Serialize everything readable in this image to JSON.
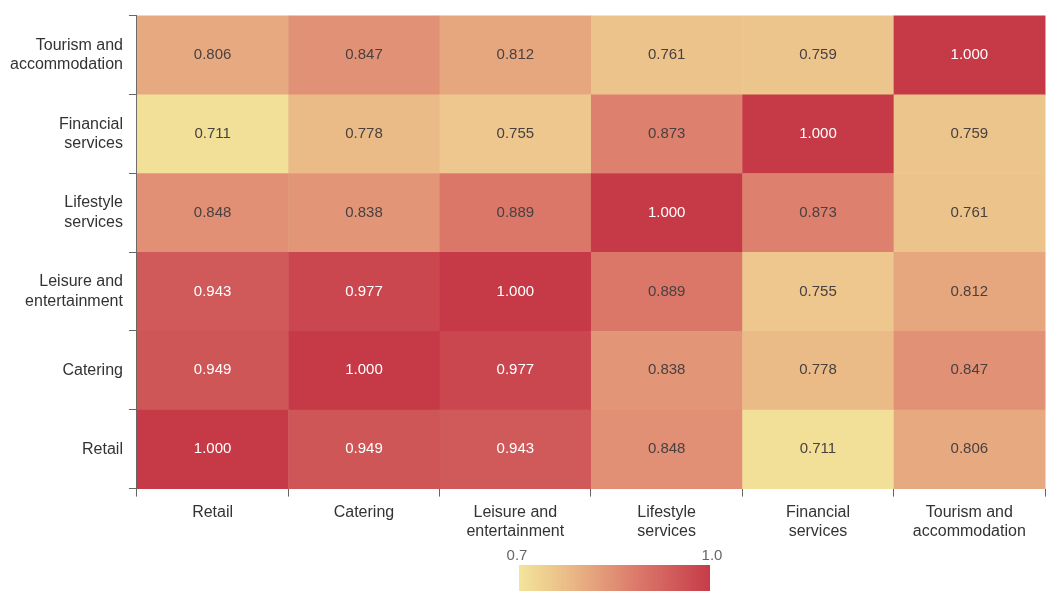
{
  "chart_data": {
    "type": "heatmap",
    "categories": [
      "Retail",
      "Catering",
      "Leisure and entertainment",
      "Lifestyle services",
      "Financial services",
      "Tourism and accommodation"
    ],
    "y_categories": [
      "Tourism and accommodation",
      "Financial services",
      "Lifestyle services",
      "Leisure and entertainment",
      "Catering",
      "Retail"
    ],
    "cells": [
      [
        0.806,
        0.847,
        0.812,
        0.761,
        0.759,
        1.0
      ],
      [
        0.711,
        0.778,
        0.755,
        0.873,
        1.0,
        0.759
      ],
      [
        0.848,
        0.838,
        0.889,
        1.0,
        0.873,
        0.761
      ],
      [
        0.943,
        0.977,
        1.0,
        0.889,
        0.755,
        0.812
      ],
      [
        0.949,
        1.0,
        0.977,
        0.838,
        0.778,
        0.847
      ],
      [
        1.0,
        0.949,
        0.943,
        0.848,
        0.711,
        0.806
      ]
    ],
    "cell_labels": [
      [
        "0.806",
        "0.847",
        "0.812",
        "0.761",
        "0.759",
        "1.000"
      ],
      [
        "0.711",
        "0.778",
        "0.755",
        "0.873",
        "1.000",
        "0.759"
      ],
      [
        "0.848",
        "0.838",
        "0.889",
        "1.000",
        "0.873",
        "0.761"
      ],
      [
        "0.943",
        "0.977",
        "1.000",
        "0.889",
        "0.755",
        "0.812"
      ],
      [
        "0.949",
        "1.000",
        "0.977",
        "0.838",
        "0.778",
        "0.847"
      ],
      [
        "1.000",
        "0.949",
        "0.943",
        "0.848",
        "0.711",
        "0.806"
      ]
    ],
    "clim": [
      0.7,
      1.0
    ],
    "cticks": [
      {
        "value": 0.7,
        "label": "0.7"
      },
      {
        "value": 1.0,
        "label": "1.0"
      }
    ]
  }
}
